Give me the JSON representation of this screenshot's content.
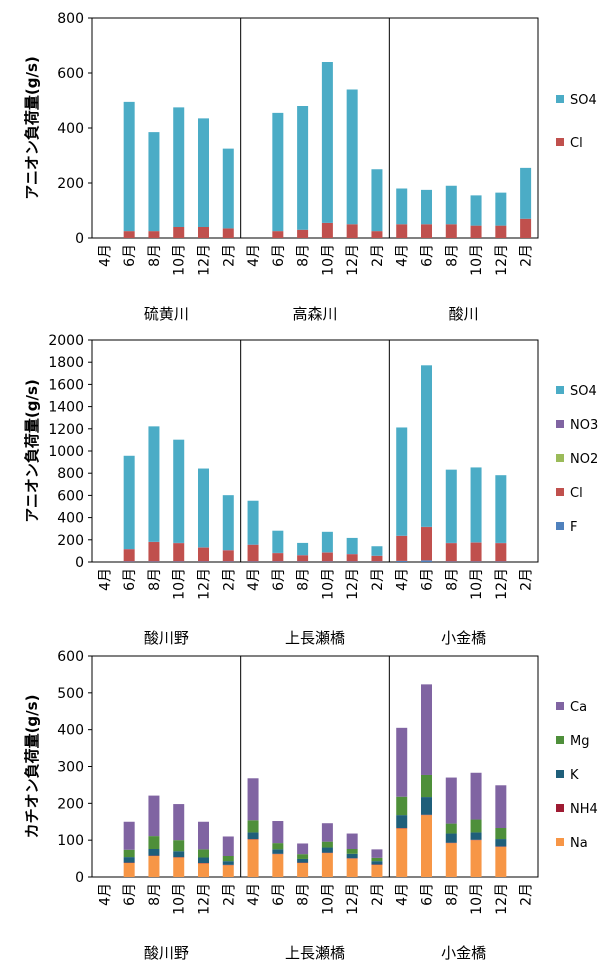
{
  "colors": {
    "SO4": "#4BACC6",
    "NO3": "#8064A2",
    "NO2": "#9BBB59",
    "Cl": "#C0504D",
    "F": "#4F81BD",
    "Ca": "#8064A2",
    "Mg": "#4E8F3A",
    "K": "#1F5F7A",
    "NH4": "#9E1B32",
    "Na": "#F79646"
  },
  "chart_data": [
    {
      "type": "bar",
      "stacked": true,
      "ylabel": "アニオン負荷量(g/s)",
      "ylim": [
        0,
        800
      ],
      "yticks": [
        0,
        200,
        400,
        600,
        800
      ],
      "months": [
        "4月",
        "6月",
        "8月",
        "10月",
        "12月",
        "2月"
      ],
      "groups": [
        "硫黄川",
        "高森川",
        "酸川"
      ],
      "legend": [
        "SO4",
        "Cl"
      ],
      "series": [
        {
          "name": "Cl",
          "values": [
            [
              0,
              25,
              25,
              40,
              40,
              35
            ],
            [
              0,
              25,
              30,
              55,
              50,
              25
            ],
            [
              50,
              50,
              50,
              45,
              45,
              70
            ]
          ]
        },
        {
          "name": "SO4",
          "values": [
            [
              0,
              470,
              360,
              435,
              395,
              290
            ],
            [
              0,
              430,
              450,
              585,
              490,
              225
            ],
            [
              130,
              125,
              140,
              110,
              120,
              185
            ]
          ]
        }
      ]
    },
    {
      "type": "bar",
      "stacked": true,
      "ylabel": "アニオン負荷量(g/s)",
      "ylim": [
        0,
        2000
      ],
      "yticks": [
        0,
        200,
        400,
        600,
        800,
        1000,
        1200,
        1400,
        1600,
        1800,
        2000
      ],
      "months": [
        "4月",
        "6月",
        "8月",
        "10月",
        "12月",
        "2月"
      ],
      "groups": [
        "酸川野",
        "上長瀬橋",
        "小金橋"
      ],
      "legend": [
        "SO4",
        "NO3",
        "NO2",
        "Cl",
        "F"
      ],
      "series": [
        {
          "name": "F",
          "values": [
            [
              0,
              5,
              5,
              5,
              5,
              5
            ],
            [
              5,
              5,
              5,
              5,
              5,
              5
            ],
            [
              10,
              15,
              5,
              5,
              5,
              0
            ]
          ]
        },
        {
          "name": "Cl",
          "values": [
            [
              0,
              110,
              175,
              165,
              125,
              100
            ],
            [
              150,
              75,
              55,
              80,
              65,
              50
            ],
            [
              225,
              300,
              165,
              170,
              165,
              0
            ]
          ]
        },
        {
          "name": "NO2",
          "values": [
            [
              0,
              0,
              0,
              0,
              0,
              0
            ],
            [
              0,
              0,
              0,
              0,
              0,
              0
            ],
            [
              0,
              0,
              0,
              0,
              0,
              0
            ]
          ]
        },
        {
          "name": "NO3",
          "values": [
            [
              0,
              2,
              2,
              2,
              2,
              2
            ],
            [
              2,
              2,
              2,
              2,
              2,
              2
            ],
            [
              2,
              2,
              2,
              2,
              2,
              0
            ]
          ]
        },
        {
          "name": "SO4",
          "values": [
            [
              0,
              840,
              1040,
              930,
              710,
              495
            ],
            [
              395,
              200,
              110,
              185,
              145,
              85
            ],
            [
              975,
              1455,
              660,
              675,
              610,
              0
            ]
          ]
        }
      ]
    },
    {
      "type": "bar",
      "stacked": true,
      "ylabel": "カチオン負荷量(g/s)",
      "ylim": [
        0,
        600
      ],
      "yticks": [
        0,
        100,
        200,
        300,
        400,
        500,
        600
      ],
      "months": [
        "4月",
        "6月",
        "8月",
        "10月",
        "12月",
        "2月"
      ],
      "groups": [
        "酸川野",
        "上長瀬橋",
        "小金橋"
      ],
      "legend": [
        "Ca",
        "Mg",
        "K",
        "NH4",
        "Na"
      ],
      "series": [
        {
          "name": "Na",
          "values": [
            [
              0,
              38,
              57,
              53,
              37,
              32
            ],
            [
              102,
              62,
              38,
              65,
              50,
              33
            ],
            [
              132,
              168,
              92,
              100,
              82,
              0
            ]
          ]
        },
        {
          "name": "NH4",
          "values": [
            [
              0,
              1,
              1,
              1,
              1,
              1
            ],
            [
              1,
              1,
              1,
              1,
              1,
              1
            ],
            [
              1,
              1,
              1,
              1,
              1,
              0
            ]
          ]
        },
        {
          "name": "K",
          "values": [
            [
              0,
              15,
              18,
              16,
              15,
              10
            ],
            [
              18,
              12,
              10,
              14,
              12,
              9
            ],
            [
              35,
              48,
              25,
              20,
              20,
              0
            ]
          ]
        },
        {
          "name": "Mg",
          "values": [
            [
              0,
              20,
              35,
              30,
              22,
              14
            ],
            [
              33,
              17,
              13,
              16,
              13,
              9
            ],
            [
              50,
              60,
              27,
              35,
              30,
              0
            ]
          ]
        },
        {
          "name": "Ca",
          "values": [
            [
              0,
              76,
              110,
              98,
              75,
              53
            ],
            [
              114,
              60,
              29,
              50,
              42,
              23
            ],
            [
              187,
              246,
              125,
              127,
              116,
              0
            ]
          ]
        }
      ]
    }
  ]
}
